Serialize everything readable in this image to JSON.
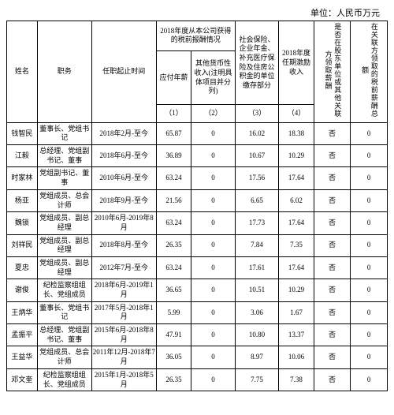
{
  "unit_text": "单位：人民币万元",
  "header": {
    "name": "姓名",
    "position": "职务",
    "tenure": "任职起止时间",
    "comp_group": "2018年度从本公司获得的税前报酬情况",
    "base_pay": "应付年薪",
    "other_income": "其他货币性收入(注明具体项目并分列)",
    "social": "社会保险、企业年金、补充医疗保险及住房公积金的单位缴存部分",
    "incentive": "2018年度任期激励收入",
    "related": "是否在股东单位或其他关联方领取薪酬",
    "related_amt": "在关联方领取的税前薪酬总额",
    "n1": "（1）",
    "n2": "（2）",
    "n3": "（3）",
    "n4": "（4）"
  },
  "rows": [
    {
      "name": "钱智民",
      "pos": "董事长、党组书记",
      "ten": "2018年2月-至今",
      "c1": "65.87",
      "c2": "0",
      "c3": "16.02",
      "c4": "18.38",
      "c5": "否",
      "c6": "0"
    },
    {
      "name": "江毅",
      "pos": "总经理、党组副书记、董事",
      "ten": "2018年6月-至今",
      "c1": "36.89",
      "c2": "0",
      "c3": "10.67",
      "c4": "10.29",
      "c5": "否",
      "c6": "0"
    },
    {
      "name": "时家林",
      "pos": "党组副书记、董事",
      "ten": "2010年6月-至今",
      "c1": "63.24",
      "c2": "0",
      "c3": "17.56",
      "c4": "17.64",
      "c5": "否",
      "c6": "0"
    },
    {
      "name": "杨亚",
      "pos": "党组成员、总会计师",
      "ten": "2018年9月-至今",
      "c1": "21.56",
      "c2": "0",
      "c3": "6.65",
      "c4": "6.02",
      "c5": "否",
      "c6": "0"
    },
    {
      "name": "魏锁",
      "pos": "党组成员、副总经理",
      "ten": "2010年6月-2019年8月",
      "c1": "63.24",
      "c2": "0",
      "c3": "17.73",
      "c4": "17.64",
      "c5": "否",
      "c6": "0"
    },
    {
      "name": "刘祥民",
      "pos": "党组成员、副总经理",
      "ten": "2018年8月-至今",
      "c1": "26.35",
      "c2": "0",
      "c3": "7.84",
      "c4": "7.35",
      "c5": "否",
      "c6": "0"
    },
    {
      "name": "夏忠",
      "pos": "党组成员、副总经理",
      "ten": "2012年7月-至今",
      "c1": "63.24",
      "c2": "0",
      "c3": "17.61",
      "c4": "17.64",
      "c5": "否",
      "c6": "0"
    },
    {
      "name": "谢俊",
      "pos": "纪检监察组组长、党组成员",
      "ten": "2018年6月-2019年1月",
      "c1": "36.65",
      "c2": "0",
      "c3": "10.51",
      "c4": "10.29",
      "c5": "否",
      "c6": "0"
    },
    {
      "name": "王炳华",
      "pos": "董事长、党组书记",
      "ten": "2017年5月-2018年1月",
      "c1": "5.99",
      "c2": "0",
      "c3": "3.06",
      "c4": "1.67",
      "c5": "否",
      "c6": "0"
    },
    {
      "name": "孟振平",
      "pos": "总经理、党组副书记、董事",
      "ten": "2015年6月-2018年8月",
      "c1": "47.91",
      "c2": "0",
      "c3": "10.80",
      "c4": "13.37",
      "c5": "否",
      "c6": "0"
    },
    {
      "name": "王益华",
      "pos": "党组成员、总会计师",
      "ten": "2011年12月-2018年7月",
      "c1": "36.05",
      "c2": "0",
      "c3": "8.97",
      "c4": "10.06",
      "c5": "否",
      "c6": "0"
    },
    {
      "name": "邓文奎",
      "pos": "纪检监察组组长、党组成员",
      "ten": "2015年1月-2018年5月",
      "c1": "26.35",
      "c2": "0",
      "c3": "7.75",
      "c4": "7.38",
      "c5": "否",
      "c6": "0"
    }
  ]
}
